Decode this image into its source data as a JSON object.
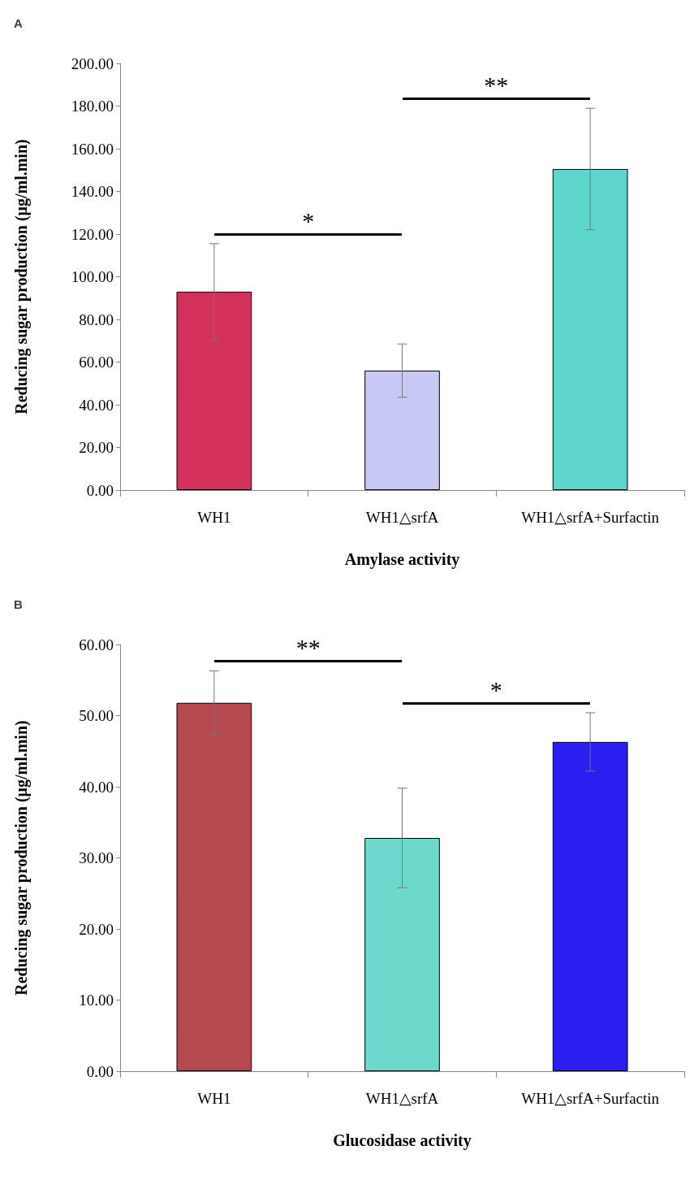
{
  "chart_data": [
    {
      "type": "bar",
      "title": "A",
      "xlabel": "Amylase activity",
      "ylabel": "Reducing sugar production (μg/ml.min)",
      "categories": [
        "WH1",
        "WH1△srfA",
        "WH1△srfA+Surfactin"
      ],
      "values": [
        93,
        56,
        150.5
      ],
      "errors": [
        22.5,
        12.5,
        28.5
      ],
      "colors": [
        "#d4305c",
        "#c8c8f4",
        "#5ed6cc"
      ],
      "ylim": [
        0,
        200
      ],
      "yticks": [
        {
          "value": 0,
          "label": "0.00"
        },
        {
          "value": 20,
          "label": "20.00"
        },
        {
          "value": 40,
          "label": "40.00"
        },
        {
          "value": 60,
          "label": "60.00"
        },
        {
          "value": 80,
          "label": "80.00"
        },
        {
          "value": 100,
          "label": "100.00"
        },
        {
          "value": 120,
          "label": "120.00"
        },
        {
          "value": 140,
          "label": "140.00"
        },
        {
          "value": 160,
          "label": "160.00"
        },
        {
          "value": 180,
          "label": "180.00"
        },
        {
          "value": 200,
          "label": "200.00"
        }
      ],
      "grid": false,
      "annotations": [
        "*",
        "**"
      ]
    },
    {
      "type": "bar",
      "title": "B",
      "xlabel": "Glucosidase activity",
      "ylabel": "Reducing sugar production (μg/ml.min)",
      "categories": [
        "WH1",
        "WH1△srfA",
        "WH1△srfA+Surfactin"
      ],
      "values": [
        51.8,
        32.8,
        46.3
      ],
      "errors": [
        4.5,
        7,
        4.1
      ],
      "colors": [
        "#b44a50",
        "#6ed8cc",
        "#2a1ef0"
      ],
      "ylim": [
        0,
        60
      ],
      "yticks": [
        {
          "value": 0,
          "label": "0.00"
        },
        {
          "value": 10,
          "label": "10.00"
        },
        {
          "value": 20,
          "label": "20.00"
        },
        {
          "value": 30,
          "label": "30.00"
        },
        {
          "value": 40,
          "label": "40.00"
        },
        {
          "value": 50,
          "label": "50.00"
        },
        {
          "value": 60,
          "label": "60.00"
        }
      ],
      "grid": false,
      "annotations": [
        "**",
        "*"
      ]
    }
  ]
}
